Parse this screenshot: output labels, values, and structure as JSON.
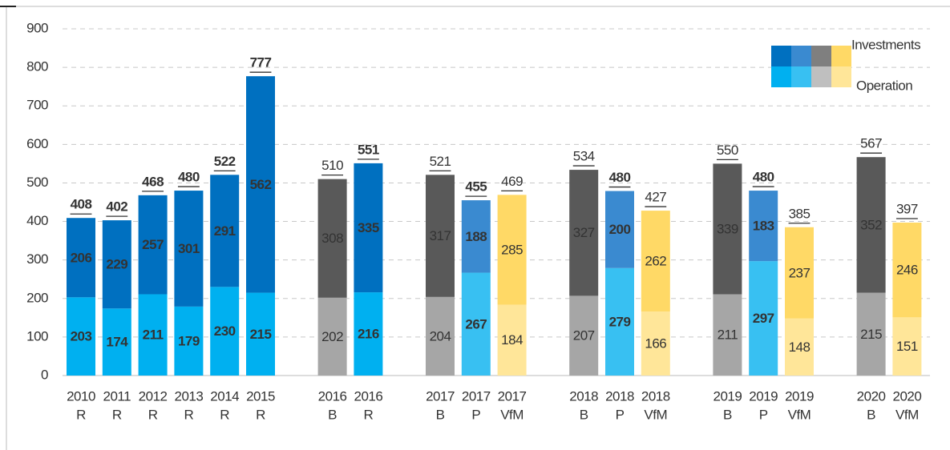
{
  "chart_data": {
    "type": "stacked_bar",
    "categories": [
      [
        "2010",
        "R"
      ],
      [
        "2011",
        "R"
      ],
      [
        "2012",
        "R"
      ],
      [
        "2013",
        "R"
      ],
      [
        "2014",
        "R"
      ],
      [
        "2015",
        "R"
      ],
      [
        "2016",
        "B"
      ],
      [
        "2016",
        "R"
      ],
      [
        "2017",
        "B"
      ],
      [
        "2017",
        "P"
      ],
      [
        "2017",
        "VfM"
      ],
      [
        "2018",
        "B"
      ],
      [
        "2018",
        "P"
      ],
      [
        "2018",
        "VfM"
      ],
      [
        "2019",
        "B"
      ],
      [
        "2019",
        "P"
      ],
      [
        "2019",
        "VfM"
      ],
      [
        "2020",
        "B"
      ],
      [
        "2020",
        "VfM"
      ]
    ],
    "series": [
      {
        "name": "Operation",
        "values": [
          203,
          174,
          211,
          179,
          230,
          215,
          202,
          216,
          204,
          267,
          184,
          207,
          279,
          166,
          211,
          297,
          148,
          215,
          151
        ],
        "colors": [
          "#00b0f0",
          "#00b0f0",
          "#00b0f0",
          "#00b0f0",
          "#00b0f0",
          "#00b0f0",
          "#a6a6a6",
          "#00b0f0",
          "#a6a6a6",
          "#38c0f2",
          "#ffe699",
          "#a6a6a6",
          "#38c0f2",
          "#ffe699",
          "#a6a6a6",
          "#38c0f2",
          "#ffe699",
          "#a6a6a6",
          "#ffe699"
        ],
        "label_colors": [
          "#fff",
          "#fff",
          "#fff",
          "#fff",
          "#fff",
          "#fff",
          "#fff",
          "#fff",
          "#fff",
          "#fff",
          "#222",
          "#fff",
          "#fff",
          "#222",
          "#fff",
          "#fff",
          "#222",
          "#fff",
          "#222"
        ],
        "legend_colors": [
          "#00b0f0",
          "#38c0f2",
          "#bfbfbf",
          "#ffe699"
        ]
      },
      {
        "name": "Investments",
        "values": [
          206,
          229,
          257,
          301,
          291,
          562,
          308,
          335,
          317,
          188,
          285,
          327,
          200,
          262,
          339,
          183,
          237,
          352,
          246
        ],
        "colors": [
          "#0070c0",
          "#0070c0",
          "#0070c0",
          "#0070c0",
          "#0070c0",
          "#0070c0",
          "#595959",
          "#0070c0",
          "#595959",
          "#3a8ad0",
          "#ffd966",
          "#595959",
          "#3a8ad0",
          "#ffd966",
          "#595959",
          "#3a8ad0",
          "#ffd966",
          "#595959",
          "#ffd966"
        ],
        "label_colors": [
          "#fff",
          "#fff",
          "#fff",
          "#fff",
          "#fff",
          "#fff",
          "#fff",
          "#fff",
          "#fff",
          "#fff",
          "#222",
          "#fff",
          "#fff",
          "#222",
          "#fff",
          "#fff",
          "#222",
          "#fff",
          "#222"
        ],
        "legend_colors": [
          "#0070c0",
          "#3a8ad0",
          "#7f7f7f",
          "#ffd966"
        ]
      }
    ],
    "totals": [
      408,
      402,
      468,
      480,
      522,
      777,
      510,
      551,
      521,
      455,
      469,
      534,
      480,
      427,
      550,
      480,
      385,
      567,
      397
    ],
    "bold": [
      true,
      true,
      true,
      true,
      true,
      true,
      false,
      true,
      false,
      true,
      false,
      false,
      true,
      false,
      false,
      true,
      false,
      false,
      false
    ],
    "ylim": [
      0,
      900
    ],
    "yticks": [
      0,
      100,
      200,
      300,
      400,
      500,
      600,
      700,
      800,
      900
    ],
    "grid": true
  }
}
